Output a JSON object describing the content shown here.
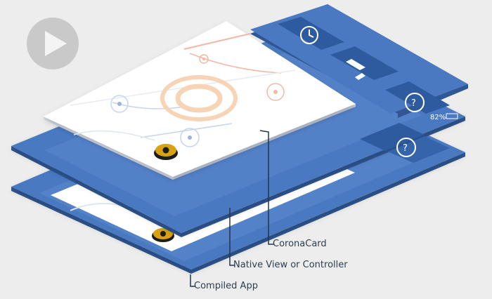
{
  "diagram": {
    "labels": {
      "corona_card": "CoronaCard",
      "native_view": "Native View or Controller",
      "compiled_app": "Compiled App"
    },
    "status_bar": {
      "battery_text": "82%"
    },
    "play_button": {
      "icon": "play-icon"
    }
  },
  "colors": {
    "background": "#ededed",
    "layer_blue": "#4a79c1",
    "layer_blue_dark": "#2e5b9f",
    "layer_side": "#3a659f",
    "tile_blue": "#3564aa",
    "top_card": "#ffffff",
    "rink_red": "#f3b8a6",
    "rink_blue": "#b8c6e6",
    "logo_orange": "#f8d4b7",
    "puck_gold": "#d7a10f",
    "label_text": "#2c3e50",
    "line_dark": "#23354b"
  }
}
